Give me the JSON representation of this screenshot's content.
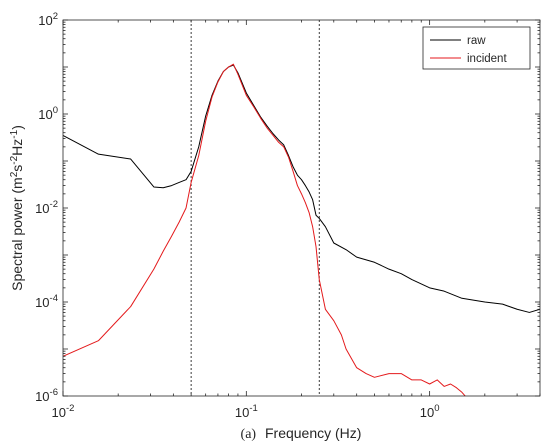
{
  "chart_data": {
    "type": "line",
    "xscale": "log",
    "yscale": "log",
    "xlim": [
      0.01,
      4
    ],
    "ylim": [
      1e-06,
      100
    ],
    "xlabel": "Frequency (Hz)",
    "caption_prefix": "(a)",
    "ylabel_parts": [
      "Spectral power (m",
      "2",
      "s",
      "-2",
      "Hz",
      "-1",
      ")"
    ],
    "x_ticks": [
      {
        "value": 0.01,
        "base": "10",
        "exp": "-2"
      },
      {
        "value": 0.1,
        "base": "10",
        "exp": "-1"
      },
      {
        "value": 1,
        "base": "10",
        "exp": "0"
      }
    ],
    "y_ticks": [
      {
        "value": 1e-06,
        "base": "10",
        "exp": "-6"
      },
      {
        "value": 0.0001,
        "base": "10",
        "exp": "-4"
      },
      {
        "value": 0.01,
        "base": "10",
        "exp": "-2"
      },
      {
        "value": 1,
        "base": "10",
        "exp": "0"
      },
      {
        "value": 100,
        "base": "10",
        "exp": "2"
      }
    ],
    "vertical_lines": [
      {
        "x": 0.05,
        "style": "dotted"
      },
      {
        "x": 0.25,
        "style": "dotted"
      }
    ],
    "legend_position": "top-right",
    "grid": false,
    "series": [
      {
        "name": "raw",
        "color": "#000000",
        "x": [
          0.01,
          0.0156,
          0.0234,
          0.0313,
          0.0352,
          0.0391,
          0.043,
          0.0469,
          0.05,
          0.055,
          0.06,
          0.065,
          0.07,
          0.075,
          0.08,
          0.085,
          0.09,
          0.1,
          0.11,
          0.12,
          0.13,
          0.14,
          0.15,
          0.16,
          0.17,
          0.18,
          0.19,
          0.2,
          0.21,
          0.22,
          0.23,
          0.24,
          0.25,
          0.27,
          0.3,
          0.35,
          0.4,
          0.5,
          0.6,
          0.7,
          0.8,
          1.0,
          1.2,
          1.5,
          2.0,
          2.5,
          3.0,
          3.5,
          4.0
        ],
        "y": [
          0.35,
          0.14,
          0.11,
          0.028,
          0.027,
          0.03,
          0.035,
          0.04,
          0.06,
          0.2,
          0.9,
          2.5,
          5.0,
          8.0,
          10.0,
          11.0,
          7.5,
          2.8,
          1.5,
          0.85,
          0.55,
          0.38,
          0.28,
          0.22,
          0.13,
          0.075,
          0.05,
          0.04,
          0.03,
          0.022,
          0.015,
          0.007,
          0.006,
          0.004,
          0.0018,
          0.0013,
          0.0009,
          0.0007,
          0.0005,
          0.0004,
          0.0003,
          0.0002,
          0.00017,
          0.00012,
          0.0001,
          9e-05,
          7e-05,
          6e-05,
          7e-05
        ]
      },
      {
        "name": "incident",
        "color": "#e41a1c",
        "x": [
          0.01,
          0.0156,
          0.0234,
          0.0313,
          0.0352,
          0.0391,
          0.043,
          0.0469,
          0.05,
          0.055,
          0.06,
          0.065,
          0.07,
          0.075,
          0.08,
          0.085,
          0.09,
          0.1,
          0.11,
          0.12,
          0.13,
          0.14,
          0.15,
          0.16,
          0.17,
          0.18,
          0.19,
          0.2,
          0.21,
          0.22,
          0.23,
          0.24,
          0.25,
          0.27,
          0.3,
          0.33,
          0.35,
          0.4,
          0.45,
          0.5,
          0.6,
          0.7,
          0.8,
          0.9,
          1.0,
          1.1,
          1.2,
          1.3,
          1.4,
          1.5,
          1.6
        ],
        "y": [
          7e-06,
          1.5e-05,
          8e-05,
          0.0005,
          0.0012,
          0.0025,
          0.005,
          0.01,
          0.035,
          0.13,
          0.7,
          2.3,
          4.8,
          8.0,
          10.0,
          11.5,
          7.0,
          2.5,
          1.4,
          0.8,
          0.5,
          0.35,
          0.25,
          0.2,
          0.12,
          0.06,
          0.03,
          0.02,
          0.013,
          0.008,
          0.004,
          0.0015,
          0.0003,
          7e-05,
          4e-05,
          2e-05,
          1e-05,
          4e-06,
          3e-06,
          2.5e-06,
          3e-06,
          3e-06,
          2.2e-06,
          2.2e-06,
          1.8e-06,
          2.2e-06,
          1.6e-06,
          1.8e-06,
          1.5e-06,
          1.2e-06,
          9e-07
        ]
      }
    ]
  }
}
